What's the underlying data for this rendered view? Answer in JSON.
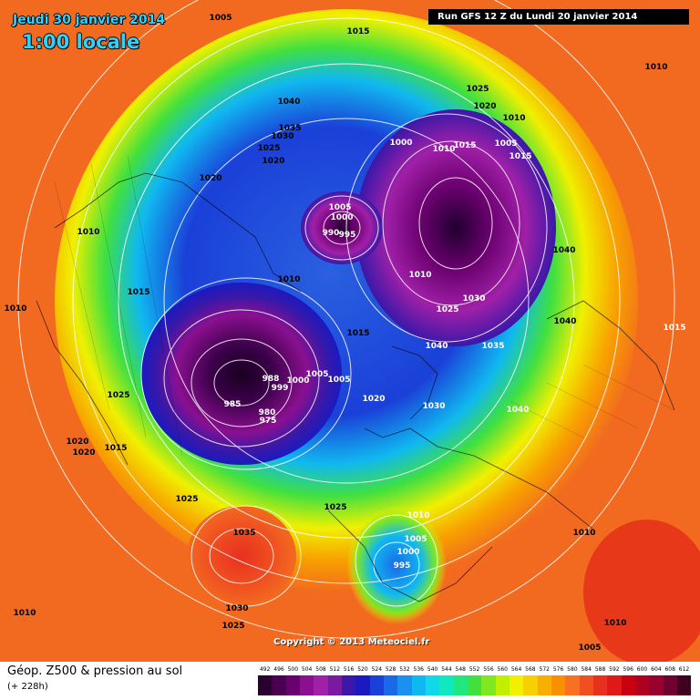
{
  "header": {
    "date_label": "Jeudi 30 janvier 2014",
    "time_label": "1:00 locale",
    "run_label": "Run GFS 12 Z du Lundi 20 janvier 2014"
  },
  "footer": {
    "copyright": "Copyright © 2013 Meteociel.fr",
    "legend_title": "Géop. Z500 & pression au sol",
    "legend_subtitle": "(+ 228h)"
  },
  "scale": {
    "values": [
      "492",
      "496",
      "500",
      "504",
      "508",
      "512",
      "516",
      "520",
      "524",
      "528",
      "532",
      "536",
      "540",
      "544",
      "548",
      "552",
      "556",
      "560",
      "564",
      "568",
      "572",
      "576",
      "580",
      "584",
      "588",
      "592",
      "596",
      "600",
      "604",
      "608",
      "612"
    ],
    "colors": [
      "#2a0030",
      "#4a0050",
      "#6a006e",
      "#8a1090",
      "#a020a8",
      "#7a1aa0",
      "#3a18a8",
      "#1a1ac0",
      "#1a40d8",
      "#1a6ae8",
      "#1a90f0",
      "#10b8f0",
      "#10d8e8",
      "#10e8c0",
      "#20e880",
      "#40e040",
      "#80e820",
      "#c0f000",
      "#f0f000",
      "#f8d000",
      "#f8b000",
      "#f89000",
      "#f87020",
      "#f05020",
      "#e83020",
      "#e01818",
      "#c80010",
      "#b00020",
      "#980030",
      "#700030",
      "#400020"
    ]
  },
  "map_colors": {
    "ocean_orange": "#f26a1f",
    "deep_low": "#2a0030",
    "purple": "#8a1090",
    "blue": "#1a40d8",
    "cyan": "#10d8e8",
    "green": "#40e040",
    "yellow": "#f0f000",
    "red": "#e01818"
  },
  "pressure_labels": [
    {
      "text": "1005",
      "dark": true
    },
    {
      "text": "1015",
      "dark": true
    },
    {
      "text": "1010",
      "dark": true
    },
    {
      "text": "1025",
      "dark": true
    },
    {
      "text": "1020",
      "dark": true
    },
    {
      "text": "1010",
      "dark": true
    },
    {
      "text": "1040",
      "dark": true
    },
    {
      "text": "1035",
      "dark": true
    },
    {
      "text": "1030",
      "dark": true
    },
    {
      "text": "1025",
      "dark": true
    },
    {
      "text": "1020",
      "dark": true
    },
    {
      "text": "1020",
      "dark": true
    },
    {
      "text": "1000",
      "dark": false
    },
    {
      "text": "1010",
      "dark": false
    },
    {
      "text": "1015",
      "dark": false
    },
    {
      "text": "1005",
      "dark": false
    },
    {
      "text": "1015",
      "dark": false
    },
    {
      "text": "1010",
      "dark": true
    },
    {
      "text": "1005",
      "dark": false
    },
    {
      "text": "1000",
      "dark": false
    },
    {
      "text": "995",
      "dark": false
    },
    {
      "text": "990",
      "dark": false
    },
    {
      "text": "1010",
      "dark": true
    },
    {
      "text": "1015",
      "dark": true
    },
    {
      "text": "1010",
      "dark": true
    },
    {
      "text": "1015",
      "dark": true
    },
    {
      "text": "1040",
      "dark": true
    },
    {
      "text": "1040",
      "dark": true
    },
    {
      "text": "1010",
      "dark": false
    },
    {
      "text": "1030",
      "dark": false
    },
    {
      "text": "1025",
      "dark": false
    },
    {
      "text": "1035",
      "dark": false
    },
    {
      "text": "1015",
      "dark": false
    },
    {
      "text": "1040",
      "dark": false
    },
    {
      "text": "988",
      "dark": false
    },
    {
      "text": "999",
      "dark": false
    },
    {
      "text": "1000",
      "dark": false
    },
    {
      "text": "1005",
      "dark": false
    },
    {
      "text": "1005",
      "dark": false
    },
    {
      "text": "985",
      "dark": false
    },
    {
      "text": "980",
      "dark": false
    },
    {
      "text": "975",
      "dark": false
    },
    {
      "text": "1025",
      "dark": true
    },
    {
      "text": "1020",
      "dark": true
    },
    {
      "text": "1020",
      "dark": true
    },
    {
      "text": "1015",
      "dark": true
    },
    {
      "text": "1020",
      "dark": false
    },
    {
      "text": "1030",
      "dark": false
    },
    {
      "text": "1040",
      "dark": false
    },
    {
      "text": "1025",
      "dark": true
    },
    {
      "text": "1025",
      "dark": true
    },
    {
      "text": "1035",
      "dark": true
    },
    {
      "text": "1010",
      "dark": false
    },
    {
      "text": "1005",
      "dark": false
    },
    {
      "text": "1000",
      "dark": false
    },
    {
      "text": "995",
      "dark": false
    },
    {
      "text": "1010",
      "dark": true
    },
    {
      "text": "1030",
      "dark": true
    },
    {
      "text": "1025",
      "dark": true
    },
    {
      "text": "1010",
      "dark": true
    },
    {
      "text": "1010",
      "dark": true
    },
    {
      "text": "1005",
      "dark": true
    }
  ]
}
